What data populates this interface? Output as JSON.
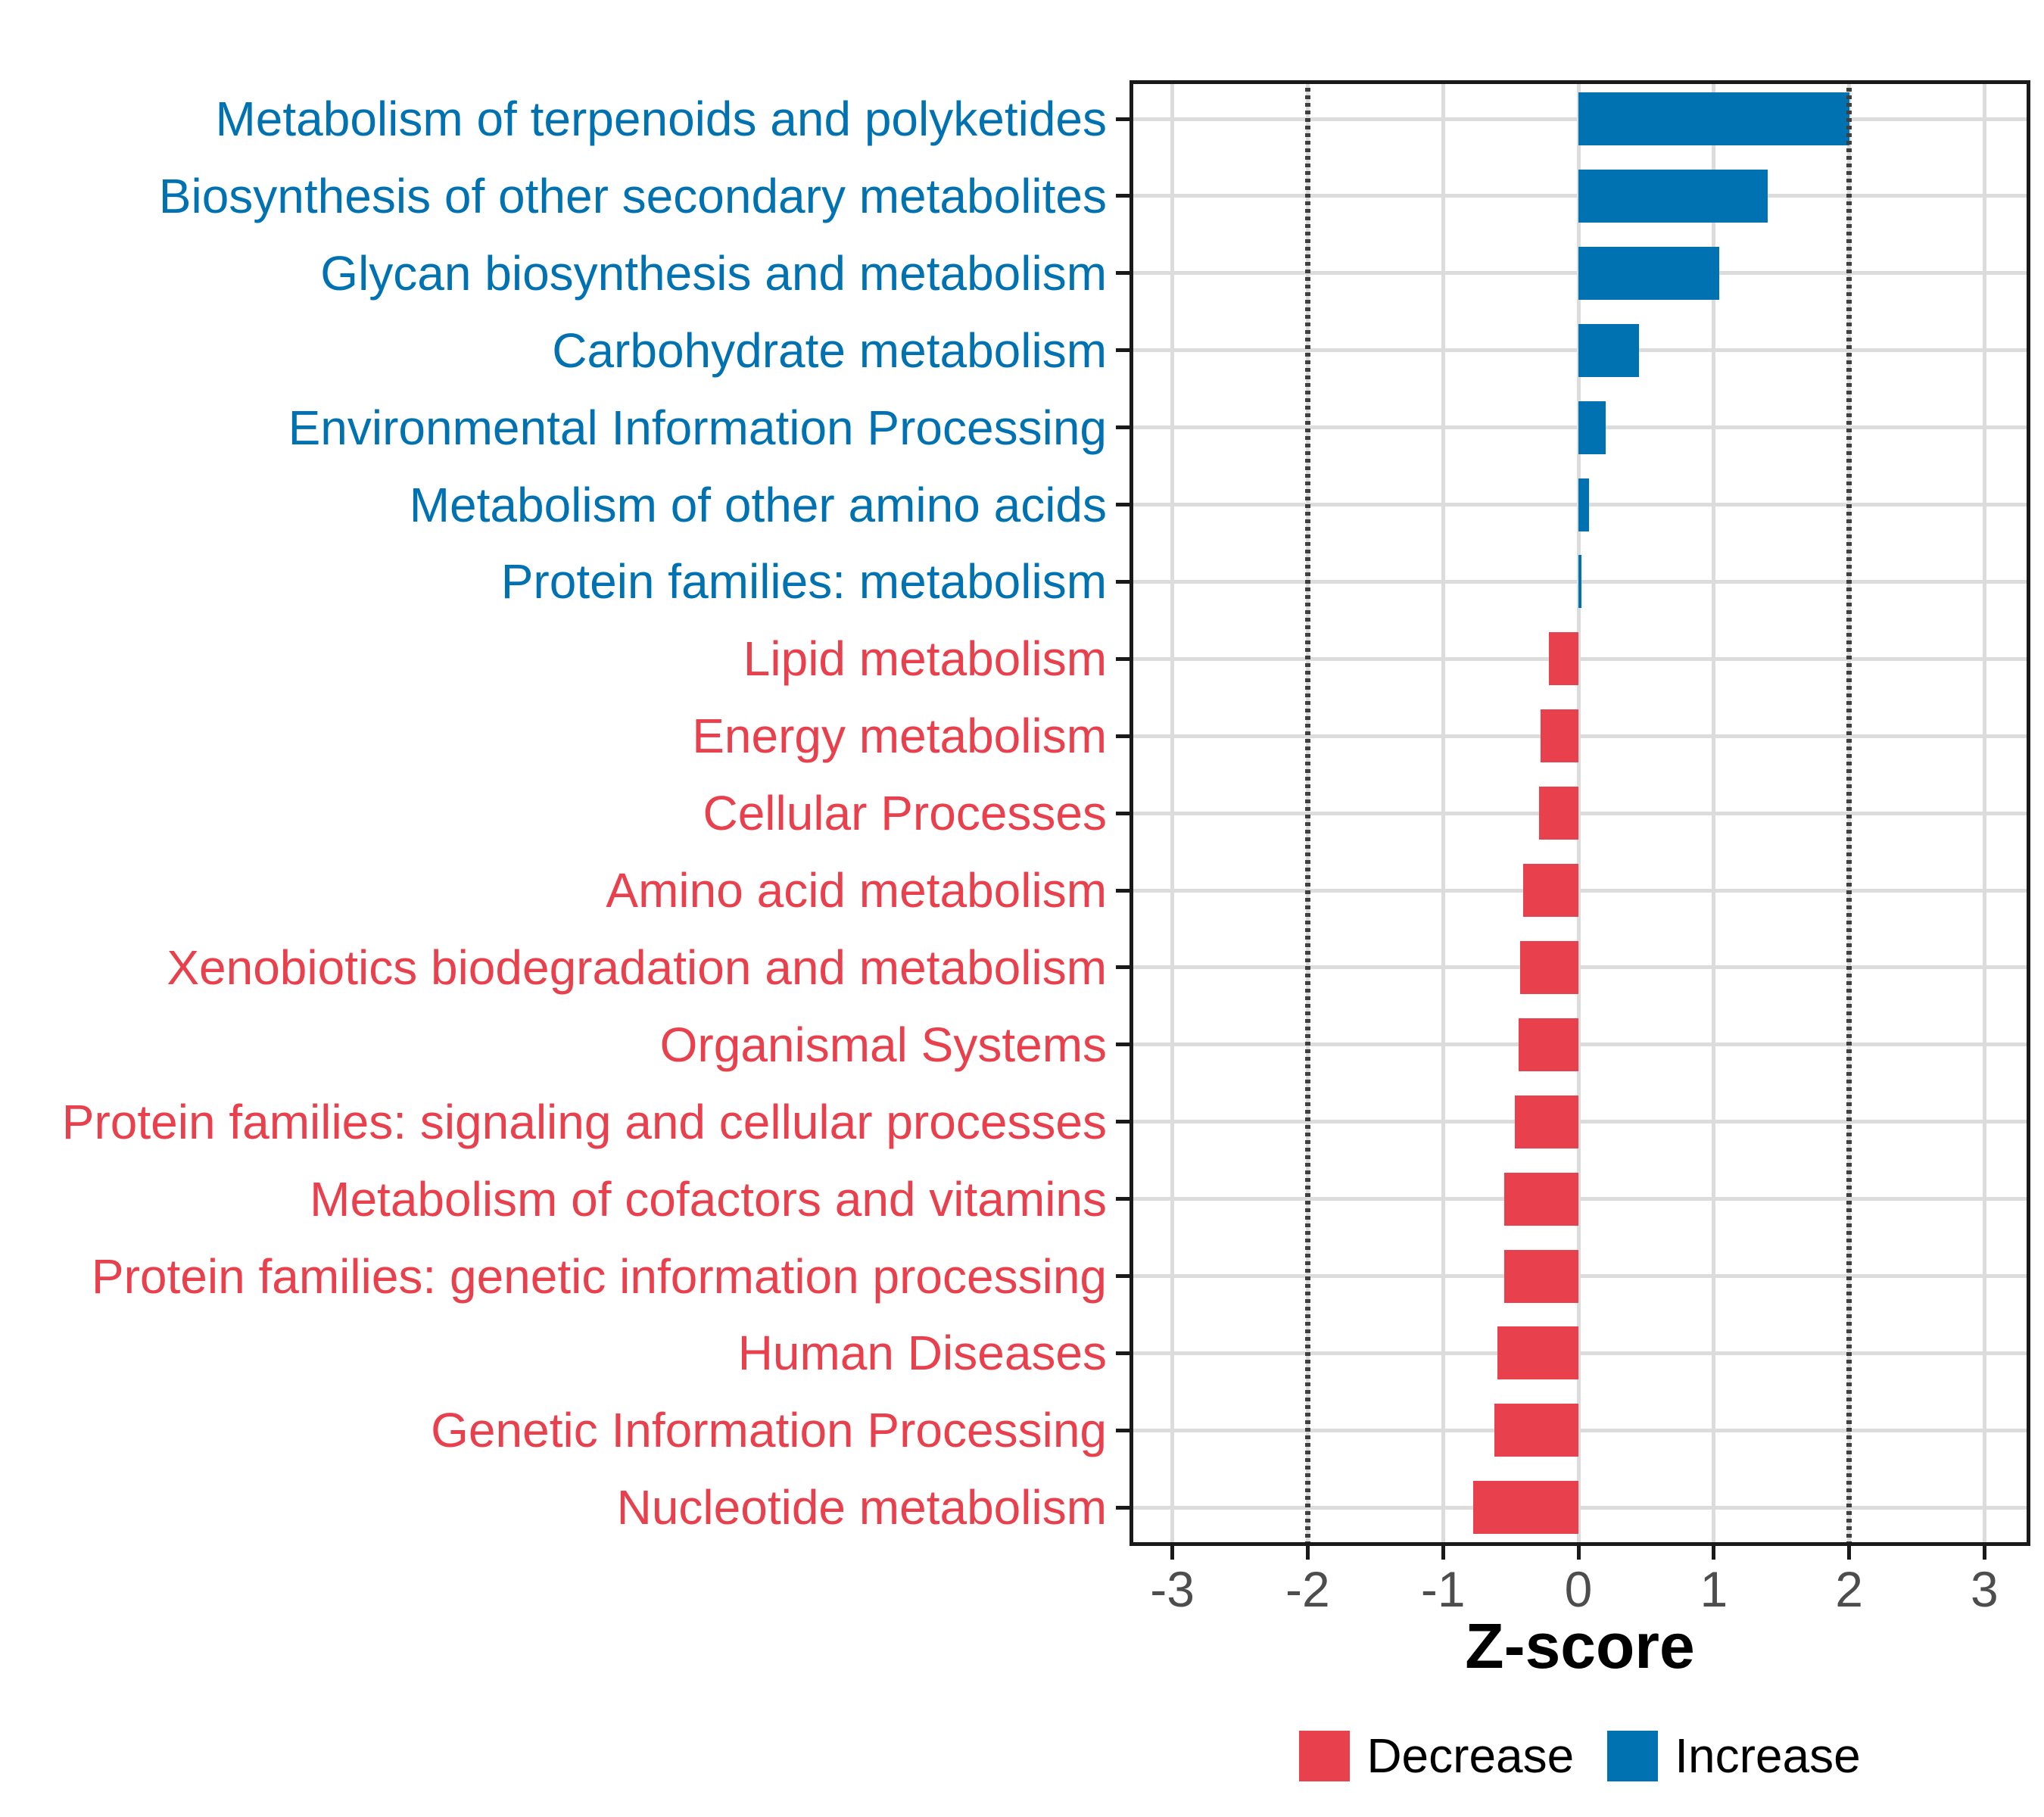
{
  "figure": {
    "background": "#ffffff"
  },
  "axis": {
    "x_title": "Z-score",
    "x_tick_labels": [
      "-3",
      "-2",
      "-1",
      "0",
      "1",
      "2",
      "3"
    ],
    "x_tick_values": [
      -3,
      -2,
      -1,
      0,
      1,
      2,
      3
    ]
  },
  "legend": {
    "items": [
      {
        "label": "Decrease",
        "color": "#E8404C"
      },
      {
        "label": "Increase",
        "color": "#0072B2"
      }
    ]
  },
  "chart_data": {
    "type": "bar",
    "orientation": "horizontal",
    "title": "",
    "xlabel": "Z-score",
    "ylabel": "",
    "xlim": [
      -3.32,
      3.35
    ],
    "x_ticks": [
      -3,
      -2,
      -1,
      0,
      1,
      2,
      3
    ],
    "reference_lines_x": [
      -2,
      2
    ],
    "grid": "on",
    "legend_position": "bottom",
    "colors": {
      "increase": "#0072B2",
      "decrease": "#E8404C"
    },
    "categories": [
      "Metabolism of terpenoids and polyketides",
      "Biosynthesis of other secondary metabolites",
      "Glycan biosynthesis and metabolism",
      "Carbohydrate metabolism",
      "Environmental Information Processing",
      "Metabolism of other amino acids",
      "Protein families: metabolism",
      "Lipid metabolism",
      "Energy metabolism",
      "Cellular Processes",
      "Amino acid metabolism",
      "Xenobiotics biodegradation and metabolism",
      "Organismal Systems",
      "Protein families: signaling and cellular processes",
      "Metabolism of cofactors and vitamins",
      "Protein families: genetic information processing",
      "Human Diseases",
      "Genetic Information Processing",
      "Nucleotide metabolism"
    ],
    "values": [
      2.0,
      1.4,
      1.04,
      0.45,
      0.2,
      0.08,
      0.02,
      -0.22,
      -0.28,
      -0.29,
      -0.41,
      -0.43,
      -0.44,
      -0.47,
      -0.55,
      -0.55,
      -0.6,
      -0.62,
      -0.78
    ],
    "directions": [
      "increase",
      "increase",
      "increase",
      "increase",
      "increase",
      "increase",
      "increase",
      "decrease",
      "decrease",
      "decrease",
      "decrease",
      "decrease",
      "decrease",
      "decrease",
      "decrease",
      "decrease",
      "decrease",
      "decrease",
      "decrease"
    ],
    "series": [
      {
        "name": "Z-score",
        "values": [
          2.0,
          1.4,
          1.04,
          0.45,
          0.2,
          0.08,
          0.02,
          -0.22,
          -0.28,
          -0.29,
          -0.41,
          -0.43,
          -0.44,
          -0.47,
          -0.55,
          -0.55,
          -0.6,
          -0.62,
          -0.78
        ]
      }
    ]
  }
}
